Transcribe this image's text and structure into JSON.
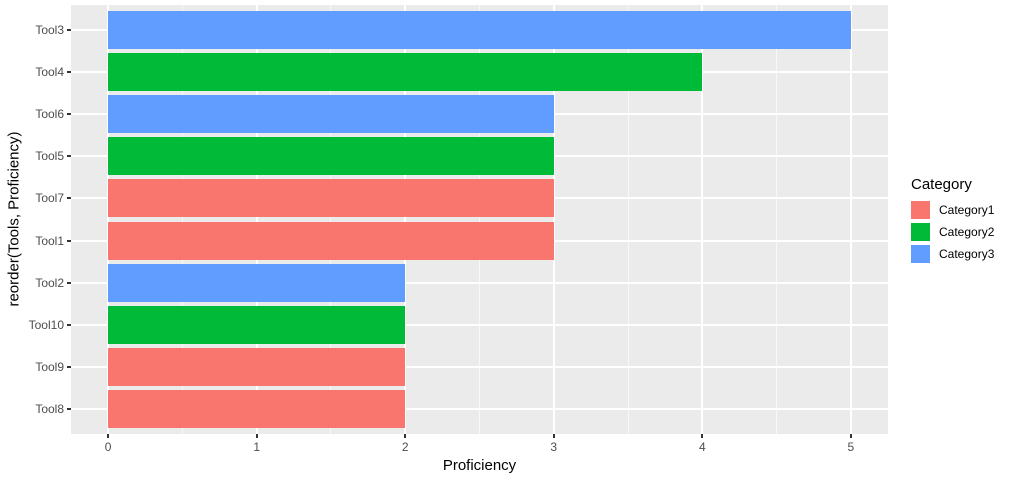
{
  "chart_data": {
    "type": "bar",
    "orientation": "horizontal",
    "title": "",
    "xlabel": "Proficiency",
    "ylabel": "reorder(Tools, Proficiency)",
    "xlim": [
      0,
      5
    ],
    "x_ticks": [
      0,
      1,
      2,
      3,
      4,
      5
    ],
    "x_minor_ticks": [
      0.5,
      1.5,
      2.5,
      3.5,
      4.5
    ],
    "grid": "on",
    "categories": [
      "Tool3",
      "Tool4",
      "Tool6",
      "Tool5",
      "Tool7",
      "Tool1",
      "Tool2",
      "Tool10",
      "Tool9",
      "Tool8"
    ],
    "values": [
      5,
      4,
      3,
      3,
      3,
      3,
      2,
      2,
      2,
      2
    ],
    "groups": [
      "Category3",
      "Category2",
      "Category3",
      "Category2",
      "Category1",
      "Category1",
      "Category3",
      "Category2",
      "Category1",
      "Category1"
    ],
    "legend": {
      "title": "Category",
      "position": "right",
      "entries": [
        {
          "label": "Category1",
          "color": "#F8766D"
        },
        {
          "label": "Category2",
          "color": "#00BA38"
        },
        {
          "label": "Category3",
          "color": "#619CFF"
        }
      ]
    },
    "colors": {
      "panel_background": "#EBEBEB",
      "gridline": "#FFFFFF",
      "tick_text": "#4D4D4D",
      "axis_title_text": "#000000",
      "bar_red": "#F8766D",
      "bar_green": "#00BA38",
      "bar_blue": "#619CFF"
    }
  }
}
